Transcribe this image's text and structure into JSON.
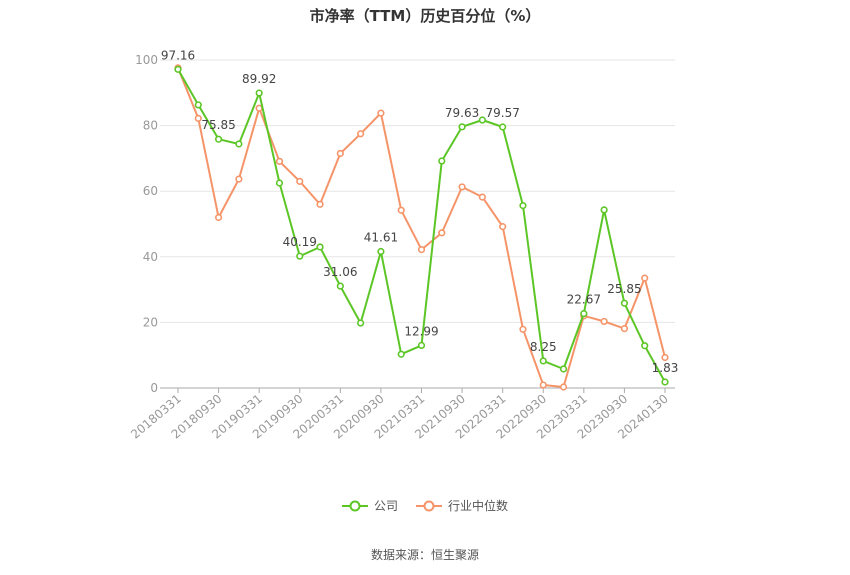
{
  "source_text": "数据来源：恒生聚源",
  "colors": {
    "company": "#5cc626",
    "industry": "#f59468",
    "grid": "#e6e6e6",
    "axis": "#aaaaaa",
    "tick_text": "#999999",
    "label_text": "#444444"
  },
  "chart_data": {
    "type": "line",
    "title": "市净率（TTM）历史百分位（%）",
    "xlabel": "",
    "ylabel": "",
    "ylim": [
      0,
      100
    ],
    "yticks": [
      "0",
      "20",
      "40",
      "60",
      "80",
      "100"
    ],
    "grid": true,
    "legend_position": "bottom",
    "x": [
      "20180331",
      "20180630",
      "20180930",
      "20181231",
      "20190331",
      "20190630",
      "20190930",
      "20191231",
      "20200331",
      "20200630",
      "20200930",
      "20201231",
      "20210331",
      "20210630",
      "20210930",
      "20211231",
      "20220331",
      "20220630",
      "20220930",
      "20221231",
      "20230331",
      "20230630",
      "20230930",
      "20231231",
      "20240130"
    ],
    "xtick_labels": [
      "20180331",
      "20180930",
      "20190331",
      "20190930",
      "20200331",
      "20200930",
      "20210331",
      "20210930",
      "20220331",
      "20220930",
      "20230331",
      "20230930",
      "20240130"
    ],
    "series": [
      {
        "name": "公司",
        "values": [
          97.16,
          86.3,
          75.85,
          74.4,
          89.92,
          62.5,
          40.19,
          43.0,
          31.06,
          19.8,
          41.61,
          10.3,
          12.99,
          69.2,
          79.63,
          81.7,
          79.57,
          55.6,
          8.25,
          5.8,
          22.67,
          54.3,
          25.85,
          12.9,
          1.83
        ]
      },
      {
        "name": "行业中位数",
        "values": [
          97.6,
          82.2,
          52.0,
          63.7,
          85.3,
          69.1,
          63.0,
          56.0,
          71.5,
          77.5,
          83.8,
          54.2,
          42.2,
          47.3,
          61.3,
          58.2,
          49.2,
          17.9,
          0.9,
          0.3,
          22.0,
          20.3,
          18.1,
          33.5,
          9.3
        ]
      }
    ],
    "data_labels": [
      {
        "index": 0,
        "text": "97.16"
      },
      {
        "index": 2,
        "text": "75.85"
      },
      {
        "index": 4,
        "text": "89.92"
      },
      {
        "index": 6,
        "text": "40.19"
      },
      {
        "index": 8,
        "text": "31.06"
      },
      {
        "index": 10,
        "text": "41.61"
      },
      {
        "index": 12,
        "text": "12.99"
      },
      {
        "index": 14,
        "text": "79.63"
      },
      {
        "index": 16,
        "text": "79.57"
      },
      {
        "index": 18,
        "text": "8.25"
      },
      {
        "index": 20,
        "text": "22.67"
      },
      {
        "index": 22,
        "text": "25.85"
      },
      {
        "index": 24,
        "text": "1.83"
      }
    ]
  }
}
